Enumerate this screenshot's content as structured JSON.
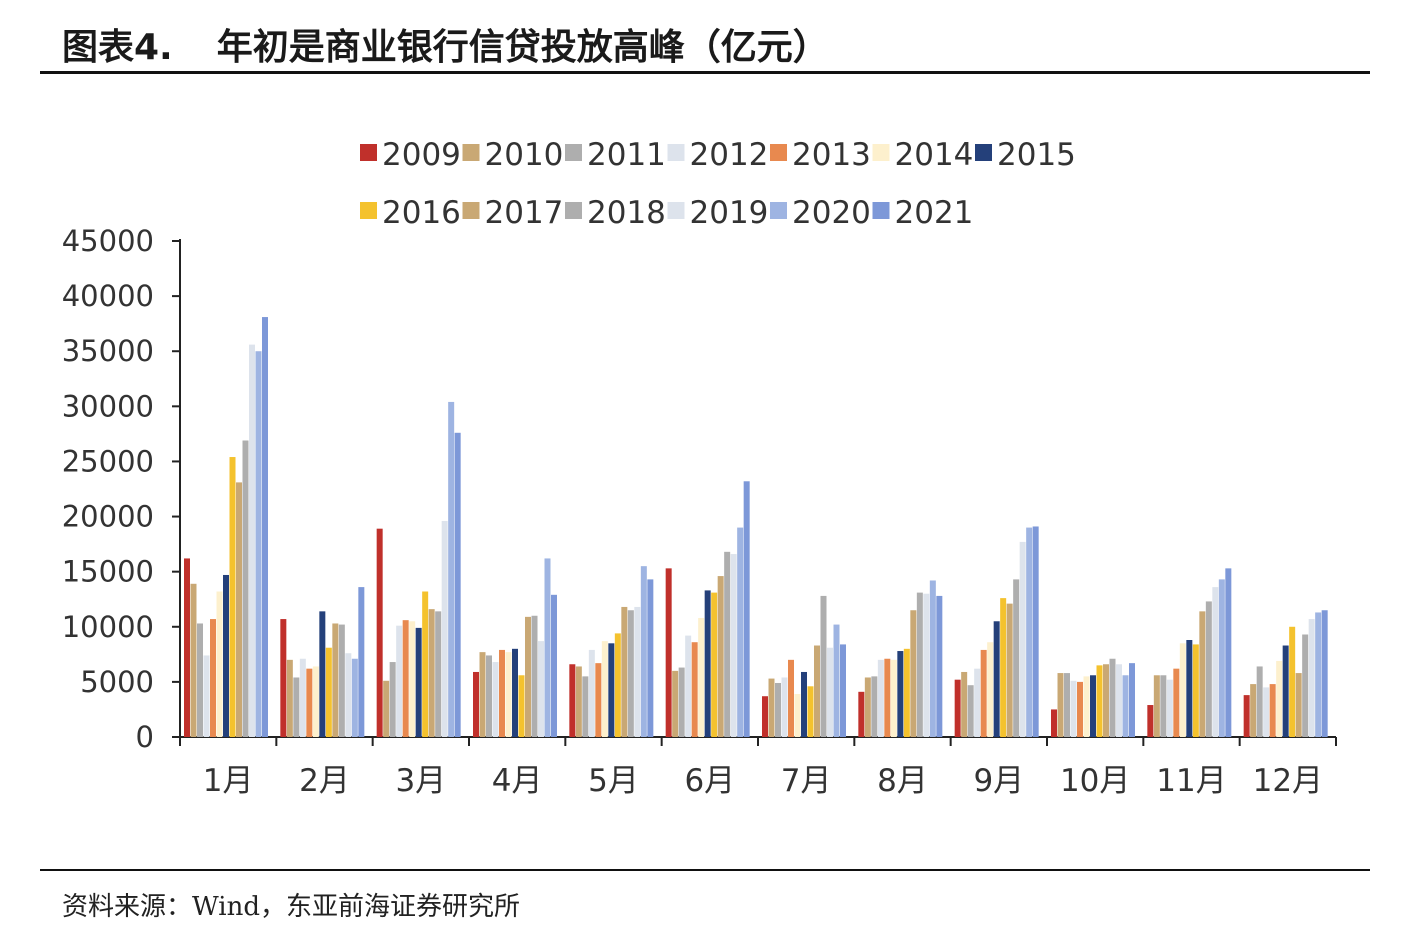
{
  "header": {
    "figure_number": "图表4.",
    "title": "年初是商业银行信贷投放高峰（亿元）"
  },
  "footer": {
    "source": "资料来源：Wind，东亚前海证券研究所"
  },
  "chart_data": {
    "type": "bar",
    "title": "",
    "xlabel": "",
    "ylabel": "",
    "ylim": [
      0,
      45000
    ],
    "yticks": [
      0,
      5000,
      10000,
      15000,
      20000,
      25000,
      30000,
      35000,
      40000,
      45000
    ],
    "grid": false,
    "legend_position": "top",
    "categories": [
      "1月",
      "2月",
      "3月",
      "4月",
      "5月",
      "6月",
      "7月",
      "8月",
      "9月",
      "10月",
      "11月",
      "12月"
    ],
    "series": [
      {
        "name": "2009",
        "color": "#c0302b",
        "values": [
          16200,
          10700,
          18900,
          5900,
          6600,
          15300,
          3700,
          4100,
          5200,
          2500,
          2900,
          3800
        ]
      },
      {
        "name": "2010",
        "color": "#c9a874",
        "values": [
          13900,
          7000,
          5100,
          7700,
          6400,
          6000,
          5300,
          5400,
          5900,
          5800,
          5600,
          4800
        ]
      },
      {
        "name": "2011",
        "color": "#aeaeae",
        "values": [
          10300,
          5400,
          6800,
          7400,
          5500,
          6300,
          4900,
          5500,
          4700,
          5800,
          5600,
          6400
        ]
      },
      {
        "name": "2012",
        "color": "#dde3ec",
        "values": [
          7400,
          7100,
          10100,
          6800,
          7900,
          9200,
          5400,
          7000,
          6200,
          5100,
          5200,
          4500
        ]
      },
      {
        "name": "2013",
        "color": "#e8894f",
        "values": [
          10700,
          6200,
          10600,
          7900,
          6700,
          8600,
          7000,
          7100,
          7900,
          5000,
          6200,
          4800
        ]
      },
      {
        "name": "2014",
        "color": "#fdf0cd",
        "values": [
          13200,
          6400,
          10500,
          7700,
          8700,
          10800,
          3900,
          7000,
          8600,
          5500,
          8500,
          6900
        ]
      },
      {
        "name": "2015",
        "color": "#24407a",
        "values": [
          14700,
          11400,
          9900,
          8000,
          8500,
          13300,
          5900,
          7800,
          10500,
          5600,
          8800,
          8300
        ]
      },
      {
        "name": "2016",
        "color": "#f4c22e",
        "values": [
          25400,
          8100,
          13200,
          5600,
          9400,
          13100,
          4600,
          8000,
          12600,
          6500,
          8400,
          10000
        ]
      },
      {
        "name": "2017",
        "color": "#c9a874",
        "values": [
          23100,
          10300,
          11600,
          10900,
          11800,
          14600,
          8300,
          11500,
          12100,
          6600,
          11400,
          5800
        ]
      },
      {
        "name": "2018",
        "color": "#aeaeae",
        "values": [
          26900,
          10200,
          11400,
          11000,
          11500,
          16800,
          12800,
          13100,
          14300,
          7100,
          12300,
          9300
        ]
      },
      {
        "name": "2019",
        "color": "#dde3ec",
        "values": [
          35600,
          7600,
          19600,
          8700,
          11800,
          16600,
          8100,
          13000,
          17700,
          6600,
          13600,
          10700
        ]
      },
      {
        "name": "2020",
        "color": "#9eb4e2",
        "values": [
          35000,
          7100,
          30400,
          16200,
          15500,
          19000,
          10200,
          14200,
          19000,
          5600,
          14300,
          11300
        ]
      },
      {
        "name": "2021",
        "color": "#7d98d8",
        "values": [
          38100,
          13600,
          27600,
          12900,
          14300,
          23200,
          8400,
          12800,
          19100,
          6700,
          15300,
          11500
        ]
      }
    ]
  }
}
